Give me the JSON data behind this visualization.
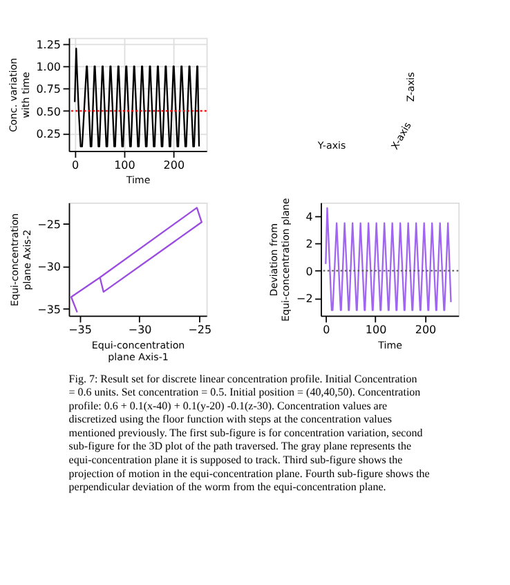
{
  "chart_data": [
    {
      "type": "line",
      "xlabel": "Time",
      "ylabel": "Conc. variation\nwith time",
      "xlim": [
        -12,
        267
      ],
      "ylim": [
        0.05,
        1.32
      ],
      "xticks": [
        0,
        100,
        200
      ],
      "yticks": [
        {
          "value": 0.25,
          "label": "0.25"
        },
        {
          "value": 0.5,
          "label": "0.50"
        },
        {
          "value": 0.75,
          "label": "0.75"
        },
        {
          "value": 1.0,
          "label": "1.00"
        },
        {
          "value": 1.25,
          "label": "1.25"
        }
      ],
      "grid": true,
      "line_style": "solid",
      "x": [
        0,
        3,
        5,
        8,
        12,
        15,
        24,
        25,
        32,
        34,
        40,
        41,
        48,
        50,
        56,
        57,
        64,
        66,
        72,
        73,
        80,
        82,
        88,
        89,
        96,
        98,
        104,
        105,
        112,
        114,
        120,
        121,
        128,
        130,
        136,
        137,
        144,
        146,
        152,
        153,
        160,
        162,
        168,
        169,
        176,
        178,
        184,
        185,
        192,
        194,
        200,
        201,
        208,
        210,
        216,
        217,
        224,
        226,
        232,
        233,
        240,
        242,
        248,
        249,
        252
      ],
      "series": [
        {
          "color": "#000000",
          "values": [
            0.6,
            1.2,
            0.9,
            0.5,
            0.1,
            0.1,
            1,
            1,
            0.1,
            0.1,
            1,
            1,
            0.1,
            0.1,
            1,
            1,
            0.1,
            0.1,
            1,
            1,
            0.1,
            0.1,
            1,
            1,
            0.1,
            0.1,
            1,
            1,
            0.1,
            0.1,
            1,
            1,
            0.1,
            0.1,
            1,
            1,
            0.1,
            0.1,
            1,
            1,
            0.1,
            0.1,
            1,
            1,
            0.1,
            0.1,
            1,
            1,
            0.1,
            0.1,
            1,
            1,
            0.1,
            0.1,
            1,
            1,
            0.1,
            0.1,
            1,
            1,
            0.1,
            0.1,
            1,
            1,
            0.1
          ]
        }
      ],
      "ref_lines": [
        {
          "axis": "y",
          "value": 0.5,
          "color": "#ff0000",
          "line_style": "dotted"
        }
      ]
    },
    {
      "type": "other",
      "annotations": [
        "Y-axis",
        "X-axis",
        "Z-axis"
      ]
    },
    {
      "type": "line",
      "xlabel": "Equi-concentration\nplane Axis-1",
      "ylabel": "Equi-concentration\nplane Axis-2",
      "xlim": [
        -35.9,
        -24.4
      ],
      "ylim": [
        -35.8,
        -22.5
      ],
      "xticks": [
        -35,
        -30,
        -25
      ],
      "yticks": [
        -35,
        -30,
        -25
      ],
      "grid": false,
      "line_style": "solid",
      "x": [
        -35.2,
        -35.7,
        -33.3,
        -25.2,
        -24.8,
        -33.0,
        -33.3
      ],
      "series": [
        {
          "color": "#9b4de0",
          "values": [
            -35.4,
            -33.6,
            -31.3,
            -23.1,
            -24.8,
            -33.0,
            -31.3
          ]
        }
      ]
    },
    {
      "type": "line",
      "xlabel": "Time",
      "ylabel": "Deviation from\nEqui-concentration plane",
      "xlim": [
        -10,
        267
      ],
      "ylim": [
        -3.3,
        5.0
      ],
      "xticks": [
        0,
        100,
        200
      ],
      "yticks": [
        -2,
        0,
        2,
        4
      ],
      "grid": false,
      "line_style": "solid",
      "x": [
        0,
        3,
        12,
        14,
        22,
        30,
        31,
        38,
        46,
        47,
        54,
        62,
        63,
        70,
        78,
        79,
        86,
        94,
        95,
        102,
        110,
        111,
        118,
        126,
        127,
        134,
        142,
        143,
        150,
        158,
        159,
        166,
        174,
        175,
        182,
        190,
        191,
        198,
        206,
        207,
        214,
        222,
        223,
        230,
        238,
        239,
        246,
        252
      ],
      "series": [
        {
          "color": "#a066f0",
          "values": [
            0.5,
            4.6,
            -2.9,
            -2.9,
            3.5,
            -2.9,
            -2.9,
            3.5,
            -2.9,
            -2.9,
            3.5,
            -2.9,
            -2.9,
            3.5,
            -2.9,
            -2.9,
            3.5,
            -2.9,
            -2.9,
            3.5,
            -2.9,
            -2.9,
            3.5,
            -2.9,
            -2.9,
            3.5,
            -2.9,
            -2.9,
            3.5,
            -2.9,
            -2.9,
            3.5,
            -2.9,
            -2.9,
            3.5,
            -2.9,
            -2.9,
            3.5,
            -2.9,
            -2.9,
            3.5,
            -2.9,
            -2.9,
            3.5,
            -2.9,
            -2.9,
            3.5,
            -2.3
          ]
        }
      ],
      "ref_lines": [
        {
          "axis": "y",
          "value": 0,
          "color": "#555555",
          "line_style": "dotted"
        }
      ]
    },
    {
      "type": "other",
      "annotations": [
        "Fig. 7: Result set for discrete linear concentration profile. Initial Concentration = 0.6 units. Set concentration = 0.5. Initial position = (40,40,50). Concentration profile: 0.6 + 0.1(x-40) + 0.1(y-20) -0.1(z-30). Concentration values are discretized using the floor function with steps at the concentration values mentioned previously. The first sub-figure is for concentration variation, second sub-figure for the 3D plot of the path traversed. The gray plane represents the equi-concentration plane it is supposed to track. Third sub-figure shows the projection of motion in the equi-concentration plane. Fourth sub-figure shows the perpendicular deviation of the worm from the equi-concentration plane."
      ]
    }
  ]
}
